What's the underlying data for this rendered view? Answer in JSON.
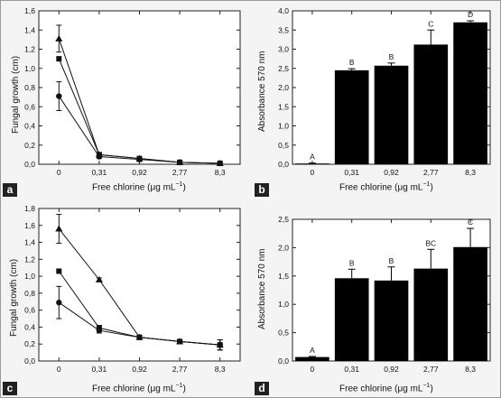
{
  "panels": [
    {
      "tag": "a",
      "xlabel_text": "Free chlorine (",
      "xlabel_unit": "μg mL",
      "xlabel_sup": "−1",
      "xlabel_end": ")",
      "ylabel": "Fungal growth (cm)"
    },
    {
      "tag": "b",
      "xlabel_text": "Free chlorine (",
      "xlabel_unit": "μg mL",
      "xlabel_sup": "−1",
      "xlabel_end": ")",
      "ylabel": "Absorbance 570 nm"
    },
    {
      "tag": "c",
      "xlabel_text": "Free chlorine (",
      "xlabel_unit": "μg mL",
      "xlabel_sup": "−1",
      "xlabel_end": ")",
      "ylabel": "Fungal growth (cm)"
    },
    {
      "tag": "d",
      "xlabel_text": "Free chlorine (",
      "xlabel_unit": "μg mL",
      "xlabel_sup": "−1",
      "xlabel_end": ")",
      "ylabel": "Absorbance 570 nm"
    }
  ],
  "chart_data": [
    {
      "panel": "a",
      "type": "line",
      "categories": [
        "0",
        "0,31",
        "0,92",
        "2,77",
        "8,3"
      ],
      "ylim": [
        0,
        1.6
      ],
      "yticks": [
        "0,0",
        "0,2",
        "0,4",
        "0,6",
        "0,8",
        "1,0",
        "1,2",
        "1,4",
        "1,6"
      ],
      "series": [
        {
          "marker": "triangle",
          "values": [
            1.31,
            0.1,
            0.06,
            0.02,
            0.01
          ],
          "errors": [
            0.14,
            0.02,
            0.02,
            0.01,
            0.005
          ]
        },
        {
          "marker": "square",
          "values": [
            1.1,
            0.1,
            0.06,
            0.02,
            0.01
          ],
          "errors": [
            0,
            0.02,
            0.02,
            0.01,
            0.005
          ]
        },
        {
          "marker": "circle",
          "values": [
            0.71,
            0.08,
            0.05,
            0.02,
            0.01
          ],
          "errors": [
            0.15,
            0.02,
            0.02,
            0.01,
            0.005
          ]
        }
      ],
      "grid": false
    },
    {
      "panel": "b",
      "type": "bar",
      "categories": [
        "0",
        "0,31",
        "0,92",
        "2,77",
        "8,3"
      ],
      "values": [
        0.02,
        2.45,
        2.57,
        3.12,
        3.7
      ],
      "errors": [
        0.01,
        0.04,
        0.07,
        0.38,
        0.04
      ],
      "letters": [
        "A",
        "B",
        "B",
        "C",
        "D"
      ],
      "ylim": [
        0,
        4.0
      ],
      "yticks": [
        "0,0",
        "0,5",
        "1,0",
        "1,5",
        "2,0",
        "2,5",
        "3,0",
        "3,5",
        "4,0"
      ],
      "grid": false
    },
    {
      "panel": "c",
      "type": "line",
      "categories": [
        "0",
        "0,31",
        "0,92",
        "2,77",
        "8,3"
      ],
      "ylim": [
        0,
        1.8
      ],
      "yticks": [
        "0,0",
        "0,2",
        "0,4",
        "0,6",
        "0,8",
        "1,0",
        "1,2",
        "1,4",
        "1,6",
        "1,8"
      ],
      "series": [
        {
          "marker": "triangle",
          "values": [
            1.56,
            0.96,
            0.28,
            0.23,
            0.19
          ],
          "errors": [
            0.17,
            0.02,
            0.02,
            0.02,
            0.06
          ]
        },
        {
          "marker": "square",
          "values": [
            1.06,
            0.39,
            0.28,
            0.23,
            0.19
          ],
          "errors": [
            0,
            0.03,
            0.02,
            0.02,
            0.06
          ]
        },
        {
          "marker": "circle",
          "values": [
            0.69,
            0.36,
            0.28,
            0.23,
            0.19
          ],
          "errors": [
            0.19,
            0.03,
            0.02,
            0.02,
            0.06
          ]
        }
      ],
      "grid": false
    },
    {
      "panel": "d",
      "type": "bar",
      "categories": [
        "0",
        "0,31",
        "0,92",
        "2,77",
        "8,3"
      ],
      "values": [
        0.07,
        1.46,
        1.42,
        1.63,
        2.01
      ],
      "errors": [
        0.01,
        0.16,
        0.24,
        0.34,
        0.33
      ],
      "letters": [
        "A",
        "B",
        "B",
        "BC",
        "C"
      ],
      "ylim": [
        0,
        2.5
      ],
      "yticks": [
        "0,0",
        "0,5",
        "1,0",
        "1,5",
        "2,0",
        "2,5"
      ],
      "grid": false
    }
  ]
}
